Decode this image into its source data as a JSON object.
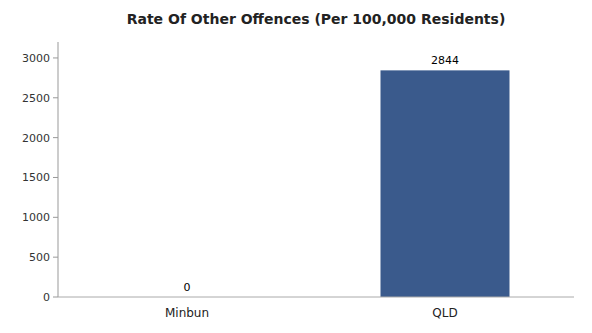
{
  "chart_data": {
    "type": "bar",
    "title": "Rate Of Other Offences (Per 100,000 Residents)",
    "categories": [
      "Minbun",
      "QLD"
    ],
    "values": [
      0,
      2844
    ],
    "colors": [
      "#3a5a8c",
      "#3a5a8c"
    ],
    "ylim": [
      0,
      3200
    ],
    "yticks": [
      0,
      500,
      1000,
      1500,
      2000,
      2500,
      3000
    ],
    "grid": false,
    "data_labels": true
  }
}
